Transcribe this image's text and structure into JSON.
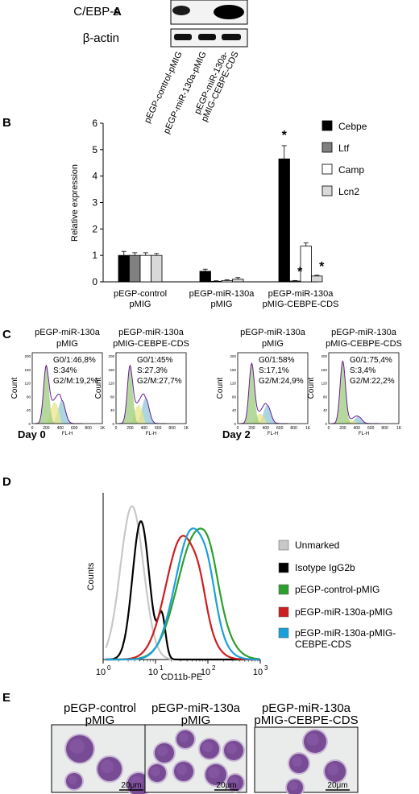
{
  "figure": {
    "panels": {
      "a": "A",
      "b": "B",
      "c": "C",
      "d": "D",
      "e": "E"
    }
  },
  "panel_a": {
    "proteins": [
      "C/EBP-ε",
      "β-actin"
    ],
    "lanes": [
      "pEGP-control-pMIG",
      "pEGP-miR-130a-pMIG",
      "pEGP-miR-130a-",
      "pMIG-CEBPE-CDS"
    ]
  },
  "panel_c": {
    "plots": [
      {
        "title1": "pEGP-miR-130a",
        "title2": "pMIG",
        "g01": "G0/1:46,8%",
        "s": "S:34%",
        "g2m": "G2/M:19,2%"
      },
      {
        "title1": "pEGP-miR-130a",
        "title2": "pMIG-CEBPE-CDS",
        "g01": "G0/1:45%",
        "s": "S:27,3%",
        "g2m": "G2/M:27,7%"
      },
      {
        "title1": "pEGP-miR-130a",
        "title2": "pMIG",
        "g01": "G0/1:58%",
        "s": "S:17,1%",
        "g2m": "G2/M:24,9%"
      },
      {
        "title1": "pEGP-miR-130a",
        "title2": "pMIG-CEBPE-CDS",
        "g01": "G0/1:75,4%",
        "s": "S:3,4%",
        "g2m": "G2/M:22,2%"
      }
    ],
    "ylabel": "Count",
    "xlabel": "FL-H",
    "ticks_y": [
      "200",
      "160",
      "120",
      "80",
      "40",
      "0"
    ],
    "ticks_x": [
      "0",
      "200",
      "400",
      "600",
      "800",
      "1K"
    ],
    "days": [
      "Day 0",
      "Day 2"
    ]
  },
  "panel_e": {
    "labels": [
      {
        "l1": "pEGP-control",
        "l2": "pMIG"
      },
      {
        "l1": "pEGP-miR-130a",
        "l2": "pMIG"
      },
      {
        "l1": "pEGP-miR-130a",
        "l2": "pMIG-CEBPE-CDS"
      }
    ],
    "scale": "20μm"
  },
  "chart_data": [
    {
      "type": "bar",
      "panel": "B",
      "categories": [
        {
          "l1": "pEGP-control",
          "l2": "pMIG"
        },
        {
          "l1": "pEGP-miR-130a",
          "l2": "pMIG"
        },
        {
          "l1": "pEGP-miR-130a",
          "l2": "pMIG-CEBPE-CDS"
        }
      ],
      "series": [
        {
          "name": "Cebpe",
          "color": "#000000",
          "values": [
            1.0,
            0.4,
            4.65
          ],
          "errors": [
            0.15,
            0.08,
            0.5
          ]
        },
        {
          "name": "Ltf",
          "color": "#808080",
          "values": [
            1.0,
            0.02,
            0.03
          ],
          "errors": [
            0.1,
            0.02,
            0.02
          ]
        },
        {
          "name": "Camp",
          "color": "#ffffff",
          "values": [
            1.0,
            0.05,
            1.35
          ],
          "errors": [
            0.1,
            0.03,
            0.12
          ]
        },
        {
          "name": "Lcn2",
          "color": "#d9d9d9",
          "values": [
            1.0,
            0.1,
            0.22
          ],
          "errors": [
            0.07,
            0.06,
            0.03
          ]
        }
      ],
      "significance": [
        {
          "category": 2,
          "series": 0,
          "mark": "*"
        },
        {
          "category": 2,
          "series": 1,
          "mark": "*"
        },
        {
          "category": 2,
          "series": 3,
          "mark": "*"
        }
      ],
      "ylabel": "Relative expression",
      "ylim": [
        0,
        6
      ],
      "yticks": [
        0,
        1,
        2,
        3,
        4,
        5,
        6
      ],
      "legend": "top-right"
    },
    {
      "type": "line",
      "panel": "D",
      "xlabel": "CD11b-PE",
      "ylabel": "Counts",
      "xscale": "log",
      "xlim": [
        1,
        1000
      ],
      "xticks": [
        {
          "base": "10",
          "exp": "0"
        },
        {
          "base": "10",
          "exp": "1"
        },
        {
          "base": "10",
          "exp": "2"
        },
        {
          "base": "10",
          "exp": "3"
        }
      ],
      "series": [
        {
          "name": "Unmarked",
          "color": "#c8c8c8"
        },
        {
          "name": "Isotype IgG2b",
          "color": "#000000"
        },
        {
          "name": "pEGP-control-pMIG",
          "color": "#2e9e2e"
        },
        {
          "name": "pEGP-miR-130a-pMIG",
          "color": "#cc1f1f"
        },
        {
          "name": "pEGP-miR-130a-pMIG-",
          "name2": "CEBPE-CDS",
          "color": "#1aa0d8"
        }
      ],
      "legend": "right"
    }
  ]
}
